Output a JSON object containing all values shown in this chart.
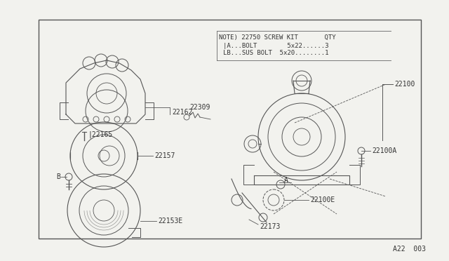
{
  "bg_color": "#f2f2ee",
  "border_color": "#555555",
  "text_color": "#333333",
  "note_line0": "NOTE) 22750 SCREW KIT      QTY",
  "note_line1": "|A...BOLT        5x22......3",
  "note_line2": "LB...SUS BOLT  5x20........1",
  "page_ref": "A22  003",
  "fig_w": 6.4,
  "fig_h": 3.72,
  "dpi": 100
}
